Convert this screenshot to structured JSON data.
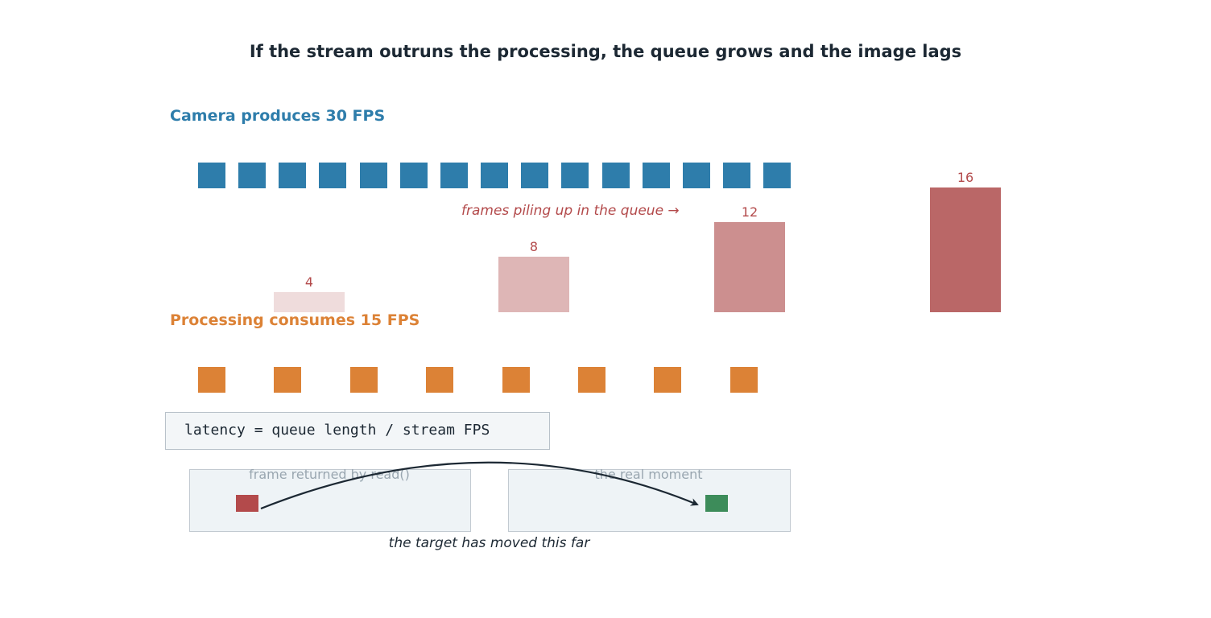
{
  "title": "If the stream outruns the processing, the queue grows and the image lags",
  "camera": {
    "label": "Camera produces 30 FPS",
    "frame_count": 15,
    "color": "#2e7dab"
  },
  "processing": {
    "label": "Processing consumes 15 FPS",
    "frame_count": 8,
    "color": "#dc8236"
  },
  "queue": {
    "note": "frames piling up in the queue →",
    "values": [
      "4",
      "8",
      "12",
      "16"
    ],
    "colors": [
      "#efdcdc",
      "#deb6b6",
      "#cc8f8f",
      "#ba6767"
    ],
    "text_color": "#b34a4b"
  },
  "formula": "latency = queue length / stream FPS",
  "panels": {
    "left_label": "frame returned by read()",
    "right_label": "the real moment",
    "stale_frame_color": "#b34a4b",
    "real_frame_color": "#3d8c5a"
  },
  "caption": "the target has moved this far"
}
